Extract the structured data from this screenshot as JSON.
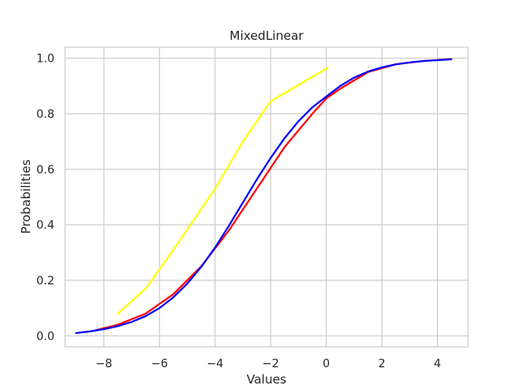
{
  "chart_data": {
    "type": "line",
    "title": "MixedLinear",
    "xlabel": "Values",
    "ylabel": "Probabilities",
    "xlim": [
      -9.4,
      5.1
    ],
    "ylim": [
      -0.04,
      1.04
    ],
    "xticks": [
      -8,
      -6,
      -4,
      -2,
      0,
      2,
      4
    ],
    "xtick_labels": [
      "−8",
      "−6",
      "−4",
      "−2",
      "0",
      "2",
      "4"
    ],
    "yticks": [
      0.0,
      0.2,
      0.4,
      0.6,
      0.8,
      1.0
    ],
    "ytick_labels": [
      "0.0",
      "0.2",
      "0.4",
      "0.6",
      "0.8",
      "1.0"
    ],
    "grid": true,
    "series": [
      {
        "color": "#ffff00",
        "x": [
          -7.5,
          -6.5,
          -5.5,
          -4.0,
          -3.0,
          -2.0,
          0.05
        ],
        "y": [
          0.08,
          0.17,
          0.31,
          0.53,
          0.7,
          0.845,
          0.965
        ]
      },
      {
        "color": "#ff0000",
        "x": [
          -8.3,
          -7.5,
          -6.5,
          -5.5,
          -4.5,
          -3.5,
          -2.5,
          -1.5,
          -0.5,
          0.0,
          0.5,
          1.5,
          2.5,
          3.5,
          4.5
        ],
        "y": [
          0.02,
          0.04,
          0.08,
          0.15,
          0.25,
          0.38,
          0.53,
          0.68,
          0.8,
          0.855,
          0.89,
          0.95,
          0.978,
          0.99,
          0.997
        ]
      },
      {
        "color": "#0000ff",
        "x": [
          -9.0,
          -8.5,
          -8.0,
          -7.5,
          -7.0,
          -6.5,
          -6.0,
          -5.5,
          -5.0,
          -4.5,
          -4.0,
          -3.5,
          -3.0,
          -2.5,
          -2.0,
          -1.5,
          -1.0,
          -0.5,
          0.0,
          0.5,
          1.0,
          1.5,
          2.0,
          2.5,
          3.0,
          3.5,
          4.0,
          4.5
        ],
        "y": [
          0.01,
          0.016,
          0.024,
          0.035,
          0.05,
          0.071,
          0.1,
          0.139,
          0.188,
          0.248,
          0.318,
          0.397,
          0.48,
          0.563,
          0.641,
          0.712,
          0.773,
          0.823,
          0.862,
          0.9,
          0.93,
          0.952,
          0.967,
          0.978,
          0.985,
          0.99,
          0.993,
          0.996
        ]
      }
    ]
  }
}
